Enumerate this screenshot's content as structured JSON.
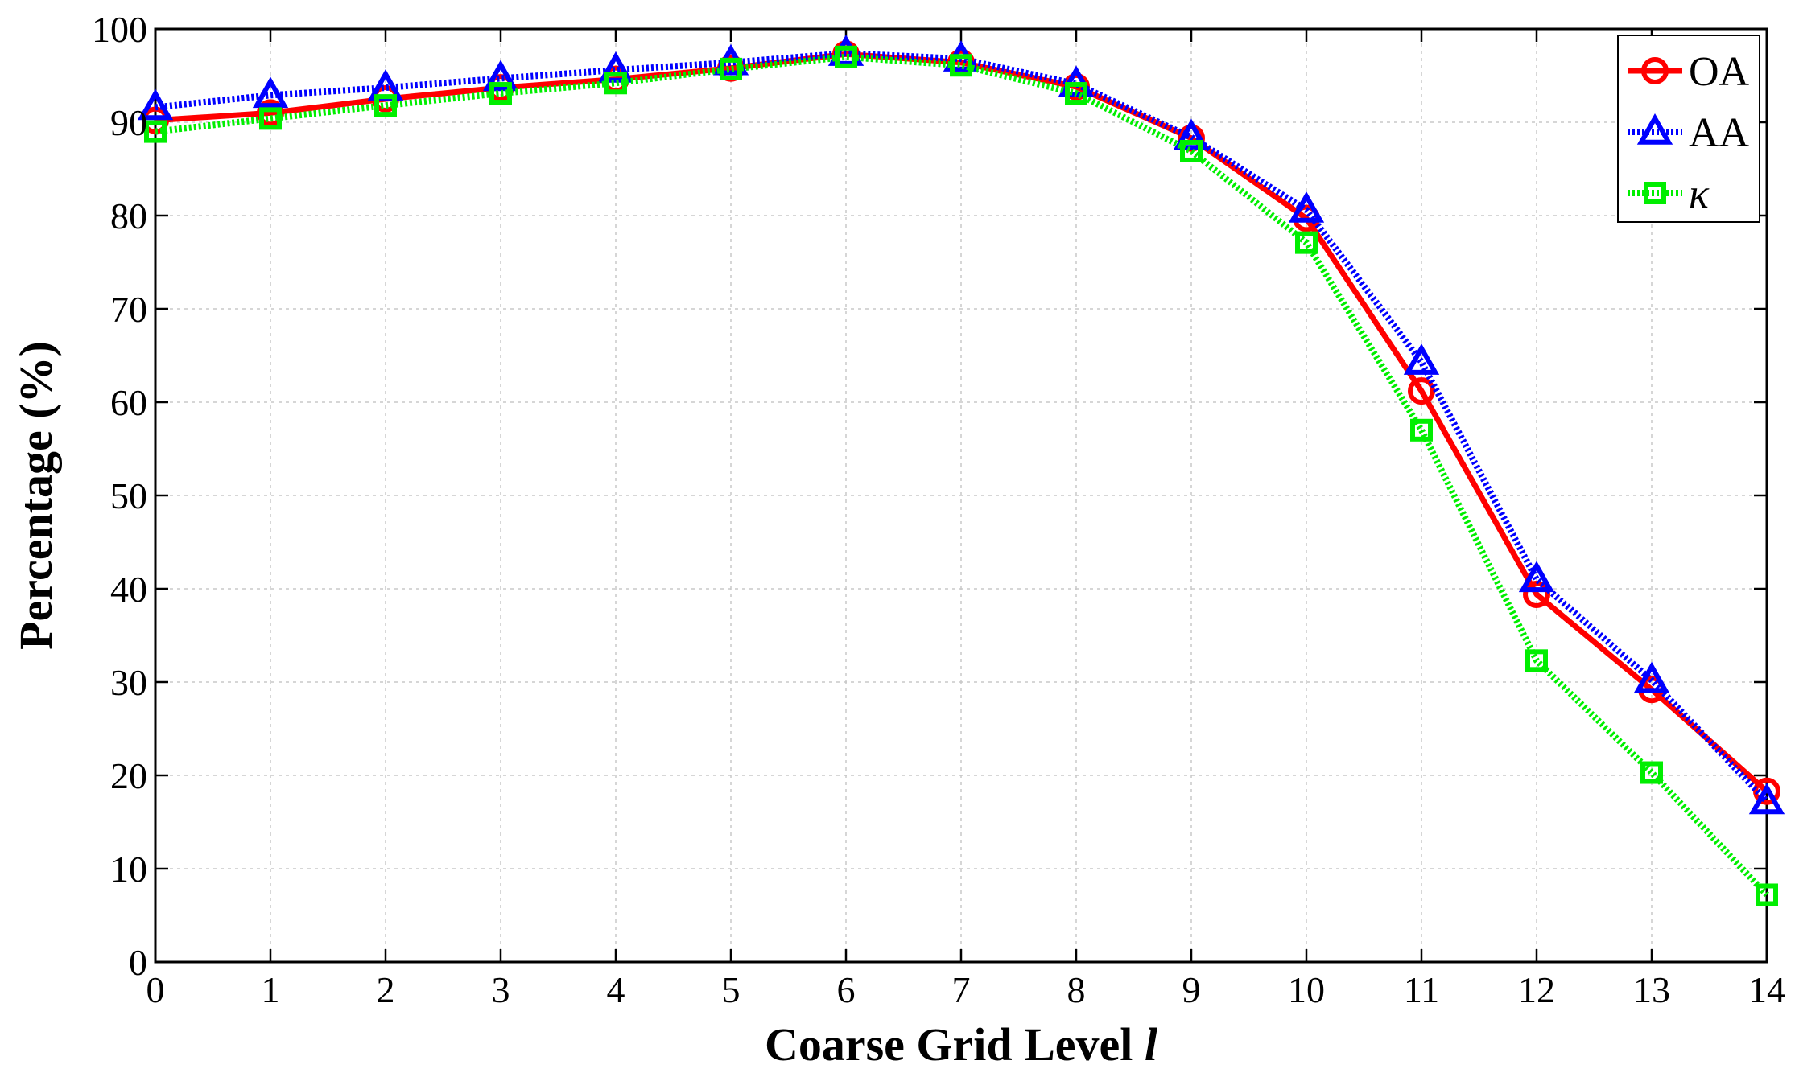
{
  "chart_data": {
    "type": "line",
    "xlabel": "Coarse Grid Level ",
    "xlabel_var": "l",
    "ylabel": "Percentage (%)",
    "x": [
      0,
      1,
      2,
      3,
      4,
      5,
      6,
      7,
      8,
      9,
      10,
      11,
      12,
      13,
      14
    ],
    "xlim": [
      0,
      14
    ],
    "ylim": [
      0,
      100
    ],
    "xticks": [
      "0",
      "1",
      "2",
      "3",
      "4",
      "5",
      "6",
      "7",
      "8",
      "9",
      "10",
      "11",
      "12",
      "13",
      "14"
    ],
    "yticks": [
      "0",
      "10",
      "20",
      "30",
      "40",
      "50",
      "60",
      "70",
      "80",
      "90",
      "100"
    ],
    "grid": true,
    "legend_position": "top-right",
    "series": [
      {
        "name": "OA",
        "color": "#ff0000",
        "marker": "circle",
        "line_style": "solid",
        "values": [
          90.2,
          91.0,
          92.5,
          93.7,
          94.6,
          95.8,
          97.3,
          96.4,
          93.8,
          88.3,
          79.7,
          61.2,
          39.4,
          29.2,
          18.3
        ]
      },
      {
        "name": "AA",
        "color": "#0000ff",
        "marker": "triangle",
        "line_style": "dotted",
        "values": [
          91.6,
          92.9,
          93.7,
          94.7,
          95.6,
          96.4,
          97.4,
          96.8,
          94.1,
          88.4,
          80.6,
          64.3,
          41.0,
          30.2,
          17.2
        ]
      },
      {
        "name": "κ",
        "color": "#00ee00",
        "marker": "square",
        "line_style": "dotted",
        "values": [
          89.0,
          90.4,
          91.8,
          93.1,
          94.2,
          95.7,
          97.0,
          96.1,
          93.1,
          86.9,
          77.1,
          57.0,
          32.3,
          20.3,
          7.2
        ]
      }
    ]
  }
}
